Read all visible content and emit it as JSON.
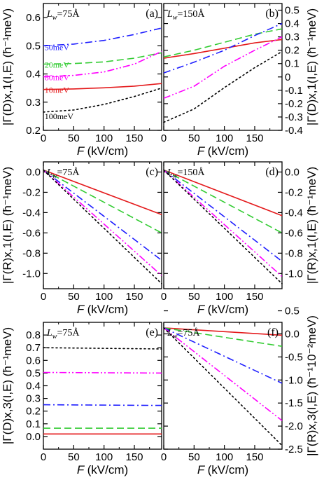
{
  "chart_data": [
    {
      "panel": "(a)",
      "type": "line",
      "lw_text": "L",
      "lw_sub": "w",
      "lw_value": "=75Å",
      "xlabel": "F (kV/cm)",
      "ylabel": "|Γ(D)x,1(I,E) (ħ⁻¹meV)",
      "xlim": [
        0,
        195
      ],
      "ylim": [
        0.2,
        0.65
      ],
      "xticks": [
        "0",
        "50",
        "100",
        "150"
      ],
      "yticks": [
        "0.2",
        "0.3",
        "0.4",
        "0.5",
        "0.6"
      ],
      "yaxis_side": "left",
      "series": [
        {
          "name": "10meV",
          "color": "#e41a1c",
          "dash": "solid",
          "x": [
            0,
            50,
            100,
            150,
            195
          ],
          "y": [
            0.345,
            0.347,
            0.351,
            0.357,
            0.366
          ]
        },
        {
          "name": "20meV",
          "color": "#33cc33",
          "dash": "dashed",
          "x": [
            0,
            50,
            100,
            150,
            195
          ],
          "y": [
            0.435,
            0.437,
            0.443,
            0.456,
            0.475
          ]
        },
        {
          "name": "50meV",
          "color": "#1f1fff",
          "dash": "dashdot",
          "x": [
            0,
            50,
            100,
            150,
            195
          ],
          "y": [
            0.5,
            0.506,
            0.519,
            0.54,
            0.563
          ]
        },
        {
          "name": "80meV",
          "color": "#ff00ff",
          "dash": "dashdotdot",
          "x": [
            0,
            50,
            100,
            150,
            195
          ],
          "y": [
            0.39,
            0.395,
            0.407,
            0.435,
            0.48
          ]
        },
        {
          "name": "100meV",
          "color": "#000000",
          "dash": "dotted",
          "x": [
            0,
            50,
            100,
            150,
            195
          ],
          "y": [
            0.265,
            0.272,
            0.292,
            0.32,
            0.35
          ]
        }
      ],
      "series_labels": [
        {
          "name": "50meV",
          "x": 2,
          "y": 0.485
        },
        {
          "name": "20meV",
          "x": 2,
          "y": 0.422
        },
        {
          "name": "80meV",
          "x": 2,
          "y": 0.378
        },
        {
          "name": "10meV",
          "x": 2,
          "y": 0.333
        },
        {
          "name": "100meV",
          "x": 2,
          "y": 0.24
        }
      ]
    },
    {
      "panel": "(b)",
      "type": "line",
      "lw_text": "L",
      "lw_sub": "w",
      "lw_value": "=150Å",
      "xlabel": "F (kV/cm)",
      "ylabel": "|Γ(D)x,1(I,E) (ħ⁻¹meV)",
      "xlim": [
        0,
        195
      ],
      "ylim": [
        -0.4,
        0.55
      ],
      "xticks": [
        "0",
        "50",
        "100",
        "150"
      ],
      "yticks": [
        "-0.4",
        "-0.3",
        "-0.2",
        "-0.1",
        "0",
        "0.1",
        "0.2",
        "0.3",
        "0.4",
        "0.5"
      ],
      "yaxis_side": "right",
      "series": [
        {
          "name": "10meV",
          "color": "#e41a1c",
          "dash": "solid",
          "x": [
            0,
            50,
            100,
            150,
            195
          ],
          "y": [
            0.14,
            0.175,
            0.215,
            0.255,
            0.28
          ]
        },
        {
          "name": "20meV",
          "color": "#33cc33",
          "dash": "dashed",
          "x": [
            0,
            50,
            100,
            150,
            195
          ],
          "y": [
            0.15,
            0.2,
            0.26,
            0.32,
            0.36
          ]
        },
        {
          "name": "50meV",
          "color": "#1f1fff",
          "dash": "dashdot",
          "x": [
            0,
            50,
            100,
            150,
            195
          ],
          "y": [
            0.03,
            0.11,
            0.2,
            0.31,
            0.4
          ]
        },
        {
          "name": "80meV",
          "color": "#ff00ff",
          "dash": "dashdotdot",
          "x": [
            0,
            50,
            100,
            150,
            195
          ],
          "y": [
            -0.16,
            -0.07,
            0.08,
            0.2,
            0.3
          ]
        },
        {
          "name": "100meV",
          "color": "#000000",
          "dash": "dotted",
          "x": [
            0,
            50,
            100,
            150,
            195
          ],
          "y": [
            -0.34,
            -0.24,
            -0.08,
            0.07,
            0.19
          ]
        }
      ]
    },
    {
      "panel": "(c)",
      "type": "line",
      "lw_text": "L",
      "lw_sub": "w",
      "lw_value": "=75Å",
      "xlabel": "F (kV/cm)",
      "ylabel": "|Γ(R)x,1(I,E) (ħ⁻¹meV)",
      "xlim": [
        0,
        195
      ],
      "ylim": [
        -1.15,
        0.1
      ],
      "xticks": [
        "0",
        "50",
        "100",
        "150"
      ],
      "yticks": [
        "-1.0",
        "-0.8",
        "-0.6",
        "-0.4",
        "-0.2",
        "0.0"
      ],
      "yaxis_side": "left",
      "series": [
        {
          "name": "10meV",
          "color": "#e41a1c",
          "dash": "solid",
          "x": [
            0,
            195
          ],
          "y": [
            0.02,
            -0.42
          ]
        },
        {
          "name": "20meV",
          "color": "#33cc33",
          "dash": "dashed",
          "x": [
            0,
            195
          ],
          "y": [
            0.02,
            -0.6
          ]
        },
        {
          "name": "50meV",
          "color": "#1f1fff",
          "dash": "dashdot",
          "x": [
            0,
            195
          ],
          "y": [
            0.02,
            -0.87
          ]
        },
        {
          "name": "80meV",
          "color": "#ff00ff",
          "dash": "dashdotdot",
          "x": [
            0,
            195
          ],
          "y": [
            0.02,
            -1.02
          ]
        },
        {
          "name": "100meV",
          "color": "#000000",
          "dash": "dotted",
          "x": [
            0,
            195
          ],
          "y": [
            0.02,
            -1.1
          ]
        }
      ]
    },
    {
      "panel": "(d)",
      "type": "line",
      "lw_text": "L",
      "lw_sub": "w",
      "lw_value": "=150Å",
      "xlabel": "F (kV/cm)",
      "ylabel": "|Γ(R)x,1(I,E) (ħ⁻¹meV)",
      "xlim": [
        0,
        195
      ],
      "ylim": [
        -1.15,
        0.1
      ],
      "xticks": [
        "0",
        "50",
        "100",
        "150"
      ],
      "yticks": [
        "-1.0",
        "-0.8",
        "-0.6",
        "-0.4",
        "-0.2",
        "0.0"
      ],
      "yaxis_side": "right",
      "series": [
        {
          "name": "10meV",
          "color": "#e41a1c",
          "dash": "solid",
          "x": [
            0,
            195
          ],
          "y": [
            0.02,
            -0.43
          ]
        },
        {
          "name": "20meV",
          "color": "#33cc33",
          "dash": "dashed",
          "x": [
            0,
            195
          ],
          "y": [
            0.02,
            -0.6
          ]
        },
        {
          "name": "50meV",
          "color": "#1f1fff",
          "dash": "dashdot",
          "x": [
            0,
            195
          ],
          "y": [
            0.02,
            -0.88
          ]
        },
        {
          "name": "80meV",
          "color": "#ff00ff",
          "dash": "dashdotdot",
          "x": [
            0,
            195
          ],
          "y": [
            0.02,
            -1.03
          ]
        },
        {
          "name": "100meV",
          "color": "#000000",
          "dash": "dotted",
          "x": [
            0,
            195
          ],
          "y": [
            0.02,
            -1.1
          ]
        }
      ]
    },
    {
      "panel": "(e)",
      "type": "line",
      "lw_text": "L",
      "lw_sub": "w",
      "lw_value": "=75Å",
      "xlabel": "F (kV/cm)",
      "ylabel": "|Γ(D)x,3(I,E) (ħ⁻¹meV)",
      "xlim": [
        0,
        195
      ],
      "ylim": [
        -0.1,
        0.9
      ],
      "xticks": [
        "0",
        "50",
        "100",
        "150"
      ],
      "yticks": [
        "0.0",
        "0.1",
        "0.2",
        "0.3",
        "0.4",
        "0.5",
        "0.6",
        "0.7",
        "0.8"
      ],
      "yaxis_side": "left",
      "series": [
        {
          "name": "10meV",
          "color": "#e41a1c",
          "dash": "solid",
          "x": [
            0,
            195
          ],
          "y": [
            0.02,
            0.02
          ]
        },
        {
          "name": "20meV",
          "color": "#33cc33",
          "dash": "dashed",
          "x": [
            0,
            195
          ],
          "y": [
            0.065,
            0.065
          ]
        },
        {
          "name": "50meV",
          "color": "#1f1fff",
          "dash": "dashdot",
          "x": [
            0,
            195
          ],
          "y": [
            0.25,
            0.245
          ]
        },
        {
          "name": "80meV",
          "color": "#ff00ff",
          "dash": "dashdotdot",
          "x": [
            0,
            195
          ],
          "y": [
            0.505,
            0.5
          ]
        },
        {
          "name": "100meV",
          "color": "#000000",
          "dash": "dotted",
          "x": [
            0,
            195
          ],
          "y": [
            0.7,
            0.69
          ]
        }
      ]
    },
    {
      "panel": "(f)",
      "type": "line",
      "lw_text": "L",
      "lw_sub": "w",
      "lw_value": "=75Å",
      "xlabel": "F (kV/cm)",
      "ylabel": "|Γ(R)x,3(I,E) (ħ⁻¹10⁻²meV)",
      "xlim": [
        0,
        195
      ],
      "ylim": [
        -2.5,
        0.25
      ],
      "xticks": [
        "0",
        "50",
        "100",
        "150"
      ],
      "yticks": [
        "-2.5",
        "-2.0",
        "-1.5",
        "-1.0",
        "-0.5",
        "0.0",
        "0.5"
      ],
      "yaxis_side": "right",
      "series": [
        {
          "name": "10meV",
          "color": "#e41a1c",
          "dash": "solid",
          "x": [
            0,
            195
          ],
          "y": [
            0.13,
            -0.03
          ]
        },
        {
          "name": "20meV",
          "color": "#33cc33",
          "dash": "dashed",
          "x": [
            0,
            195
          ],
          "y": [
            0.13,
            -0.27
          ]
        },
        {
          "name": "50meV",
          "color": "#1f1fff",
          "dash": "dashdot",
          "x": [
            0,
            195
          ],
          "y": [
            0.13,
            -1.07
          ]
        },
        {
          "name": "80meV",
          "color": "#ff00ff",
          "dash": "dashdotdot",
          "x": [
            0,
            195
          ],
          "y": [
            0.13,
            -1.88
          ]
        },
        {
          "name": "100meV",
          "color": "#000000",
          "dash": "dotted",
          "x": [
            0,
            195
          ],
          "y": [
            0.13,
            -2.42
          ]
        }
      ]
    }
  ]
}
